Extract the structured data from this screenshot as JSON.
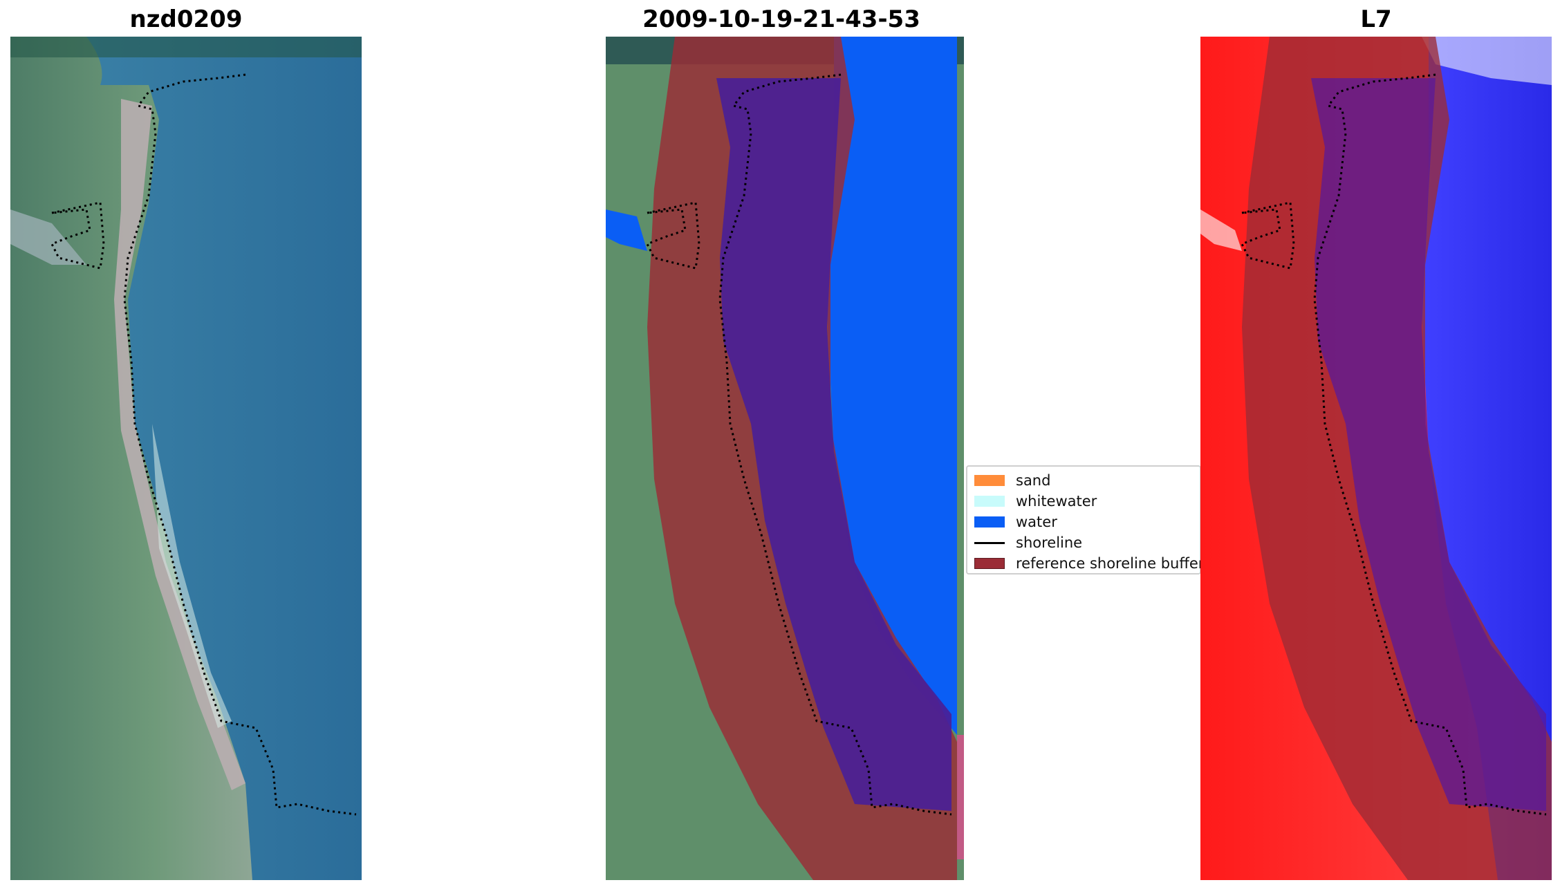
{
  "panels": [
    {
      "title": "nzd0209"
    },
    {
      "title": "2009-10-19-21-43-53"
    },
    {
      "title": "L7"
    }
  ],
  "legend": {
    "items": [
      {
        "label": "sand",
        "color": "#ff8c3a",
        "kind": "patch"
      },
      {
        "label": "whitewater",
        "color": "#c8fbfb",
        "kind": "patch"
      },
      {
        "label": "water",
        "color": "#0a5ef5",
        "kind": "patch"
      },
      {
        "label": "shoreline",
        "color": "#000000",
        "kind": "line"
      },
      {
        "label": "reference shoreline buffer",
        "color": "#9b2c36",
        "kind": "patch"
      }
    ]
  },
  "colors": {
    "water_rgb": "#2f6e9c",
    "land_rgb": "#5f8f6a",
    "classified_water": "#0a5ef5",
    "buffer": "#9b2c36",
    "buffer_over_water": "#4a1f96",
    "index_positive": "#ff0a0a",
    "index_negative": "#2020f0"
  }
}
